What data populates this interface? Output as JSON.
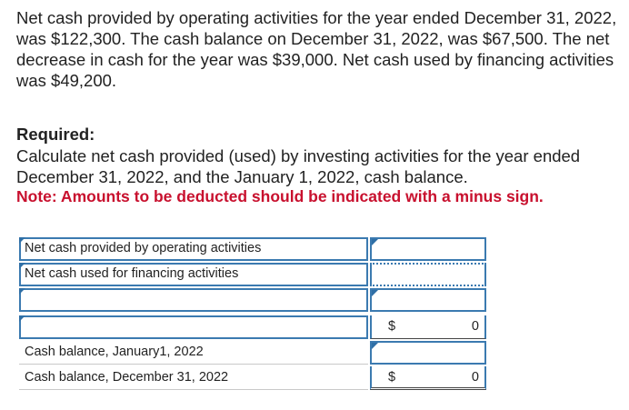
{
  "problem": {
    "text": "Net cash provided by operating activities for the year ended December 31, 2022, was $122,300. The cash balance on December 31, 2022, was $67,500. The net decrease in cash for the year was $39,000. Net cash used by financing activities was $49,200.",
    "required_heading": "Required:",
    "required_text": "Calculate net cash provided (used) by investing activities for the year ended December 31, 2022, and the January 1, 2022, cash balance.",
    "note": "Note: Amounts to be deducted should be indicated with a minus sign."
  },
  "worksheet": {
    "rows": [
      {
        "label": "Net cash provided by operating activities",
        "amount": ""
      },
      {
        "label": "Net cash used for financing activities",
        "amount": ""
      },
      {
        "label": "",
        "amount": ""
      },
      {
        "label": "",
        "currency": "$",
        "amount": "0"
      },
      {
        "label": "Cash balance, January1, 2022",
        "amount": ""
      },
      {
        "label": "Cash balance, December 31, 2022",
        "currency": "$",
        "amount": "0"
      }
    ]
  }
}
